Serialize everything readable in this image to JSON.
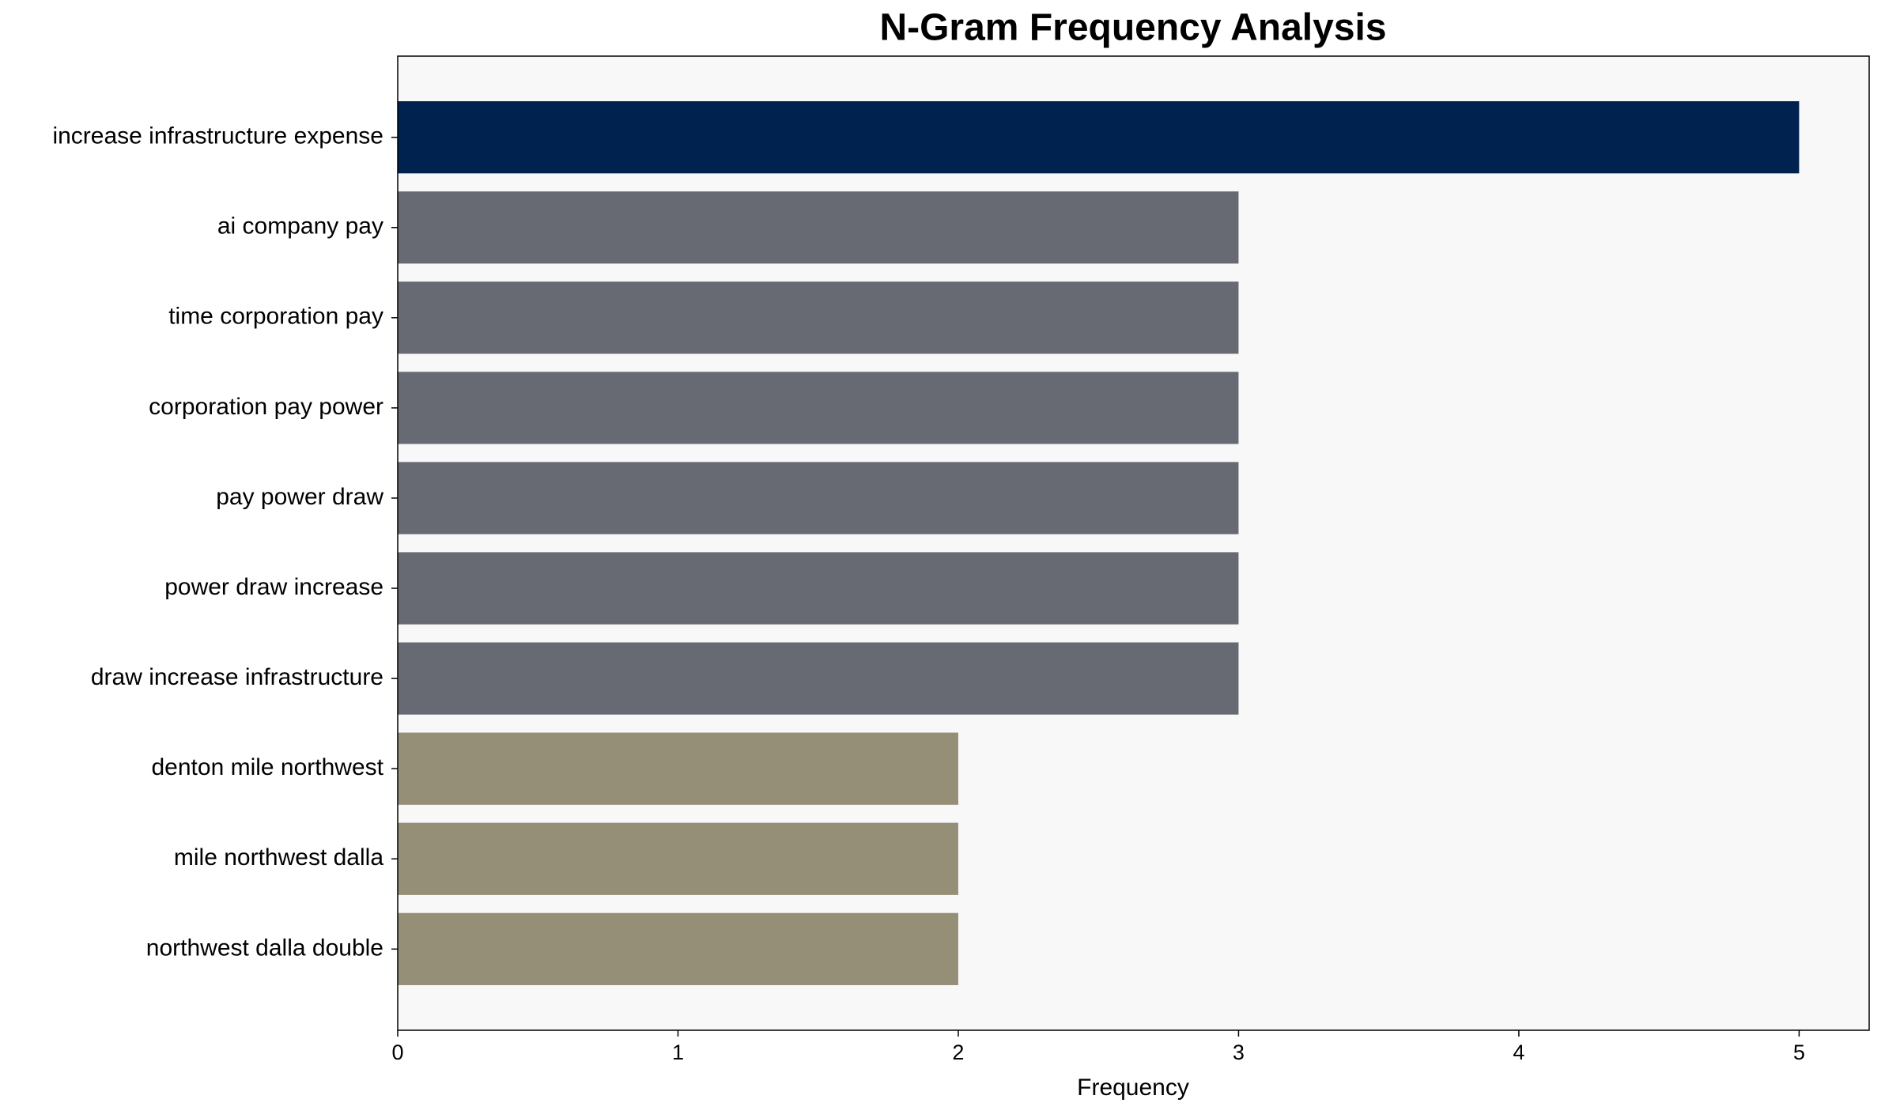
{
  "chart_data": {
    "type": "barh",
    "title": "N-Gram Frequency Analysis",
    "x_label": "Frequency",
    "categories": [
      "increase infrastructure expense",
      "ai company pay",
      "time corporation pay",
      "corporation pay power",
      "pay power draw",
      "power draw increase",
      "draw increase infrastructure",
      "denton mile northwest",
      "mile northwest dalla",
      "northwest dalla double"
    ],
    "values": [
      5,
      3,
      3,
      3,
      3,
      3,
      3,
      2,
      2,
      2
    ],
    "colors": [
      "#00224e",
      "#676a73",
      "#676a73",
      "#676a73",
      "#676a73",
      "#676a73",
      "#676a73",
      "#958f78",
      "#958f78",
      "#958f78"
    ],
    "xlim": [
      0,
      5.25
    ],
    "xticks": [
      0,
      1,
      2,
      3,
      4,
      5
    ],
    "grid": false
  }
}
